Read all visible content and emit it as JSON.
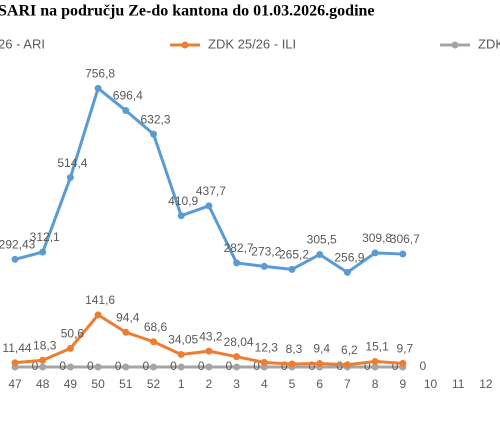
{
  "chart_data": {
    "type": "line",
    "title": "SARI na području Ze-do kantona do 01.03.2026.godine",
    "categories": [
      "47",
      "48",
      "49",
      "50",
      "51",
      "52",
      "1",
      "2",
      "3",
      "4",
      "5",
      "6",
      "7",
      "8",
      "9",
      "10",
      "11",
      "12"
    ],
    "series": [
      {
        "name": "26 - ARI",
        "color": "#5b9bd5",
        "values": [
          292.43,
          312.1,
          514.4,
          756.8,
          696.4,
          632.3,
          410.9,
          437.7,
          282.7,
          273.2,
          265.2,
          305.5,
          256.9,
          309.8,
          306.7,
          null,
          null,
          null
        ],
        "value_labels": [
          "292,43",
          "312,1",
          "514,4",
          "756,8",
          "696,4",
          "632,3",
          "410,9",
          "437,7",
          "282,7",
          "273,2",
          "265,2",
          "305,5",
          "256,9",
          "309,8",
          "306,7",
          null,
          null,
          null
        ]
      },
      {
        "name": "ZDK 25/26 - ILI",
        "color": "#ed7d31",
        "values": [
          11.44,
          18.3,
          50.6,
          141.6,
          94.4,
          68.6,
          34.05,
          43.2,
          28.04,
          12.3,
          8.3,
          9.4,
          6.2,
          15.1,
          9.7,
          null,
          null,
          null
        ],
        "value_labels": [
          "11,44",
          "18,3",
          "50,6",
          "141,6",
          "94,4",
          "68,6",
          "34,05",
          "43,2",
          "28,04",
          "12,3",
          "8,3",
          "9,4",
          "6,2",
          "15,1",
          "9,7",
          null,
          null,
          null
        ]
      },
      {
        "name": "ZDK",
        "color": "#a5a5a5",
        "values": [
          0,
          0,
          0,
          0,
          0,
          0,
          0,
          0,
          0,
          0,
          0,
          0,
          0,
          0,
          0,
          null,
          null,
          null
        ]
      }
    ],
    "ylim": [
      0,
      850
    ]
  }
}
